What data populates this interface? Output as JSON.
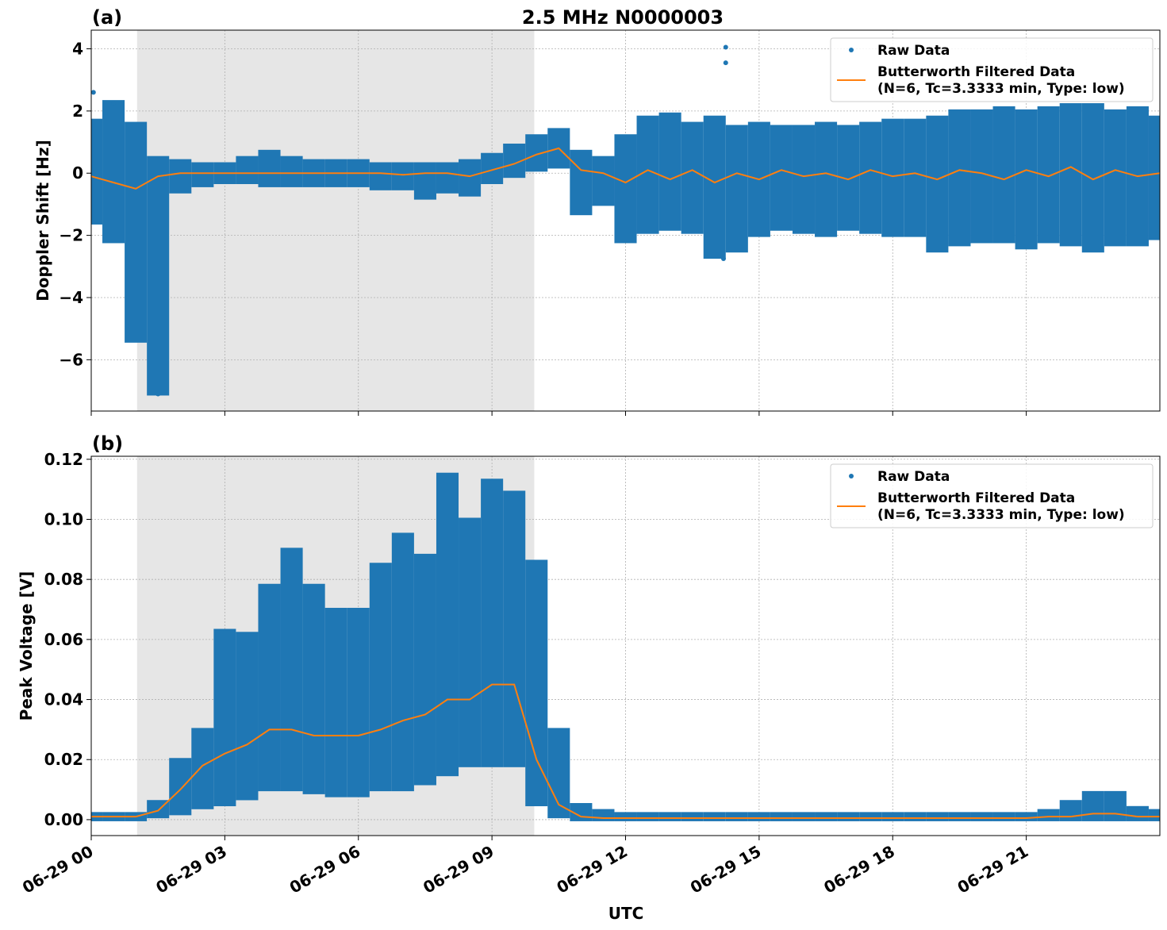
{
  "chart_data": [
    {
      "type": "scatter",
      "panel_label": "(a)",
      "title": "2.5 MHz N0000003",
      "xlabel": "",
      "ylabel": "Doppler Shift [Hz]",
      "xlim_hours": [
        0,
        24
      ],
      "ylim": [
        -7.65,
        4.6
      ],
      "yticks": [
        4,
        2,
        0,
        -2,
        -4,
        -6
      ],
      "ytick_labels": [
        "4",
        "2",
        "0",
        "−2",
        "−4",
        "−6"
      ],
      "grid": true,
      "legend_placement": "top-right",
      "shaded_interval_hours": [
        1.03,
        9.95
      ],
      "shade_color": "#e6e6e6",
      "bin_hours": [
        0,
        0.5,
        1,
        1.5,
        2,
        2.5,
        3,
        3.5,
        4,
        4.5,
        5,
        5.5,
        6,
        6.5,
        7,
        7.5,
        8,
        8.5,
        9,
        9.5,
        10,
        10.5,
        11,
        11.5,
        12,
        12.5,
        13,
        13.5,
        14,
        14.5,
        15,
        15.5,
        16,
        16.5,
        17,
        17.5,
        18,
        18.5,
        19,
        19.5,
        20,
        20.5,
        21,
        21.5,
        22,
        22.5,
        23,
        23.5,
        24
      ],
      "raw_min": [
        -1.6,
        -2.2,
        -5.4,
        -7.1,
        -0.6,
        -0.4,
        -0.3,
        -0.3,
        -0.4,
        -0.4,
        -0.4,
        -0.4,
        -0.4,
        -0.5,
        -0.5,
        -0.8,
        -0.6,
        -0.7,
        -0.3,
        -0.1,
        0.1,
        0.2,
        -1.3,
        -1.0,
        -2.2,
        -1.9,
        -1.8,
        -1.9,
        -2.7,
        -2.5,
        -2.0,
        -1.8,
        -1.9,
        -2.0,
        -1.8,
        -1.9,
        -2.0,
        -2.0,
        -2.5,
        -2.3,
        -2.2,
        -2.2,
        -2.4,
        -2.2,
        -2.3,
        -2.5,
        -2.3,
        -2.3,
        -2.1
      ],
      "raw_max": [
        1.7,
        2.3,
        1.6,
        0.5,
        0.4,
        0.3,
        0.3,
        0.5,
        0.7,
        0.5,
        0.4,
        0.4,
        0.4,
        0.3,
        0.3,
        0.3,
        0.3,
        0.4,
        0.6,
        0.9,
        1.2,
        1.4,
        0.7,
        0.5,
        1.2,
        1.8,
        1.9,
        1.6,
        1.8,
        1.5,
        1.6,
        1.5,
        1.5,
        1.6,
        1.5,
        1.6,
        1.7,
        1.7,
        1.8,
        2.0,
        2.0,
        2.1,
        2.0,
        2.1,
        2.2,
        2.2,
        2.0,
        2.1,
        1.8
      ],
      "raw_outliers": [
        [
          0.05,
          2.6
        ],
        [
          0.5,
          2.25
        ],
        [
          1.5,
          -7.1
        ],
        [
          14.25,
          4.05
        ],
        [
          14.25,
          3.55
        ],
        [
          14.2,
          -2.75
        ]
      ],
      "filtered": [
        -0.1,
        -0.3,
        -0.5,
        -0.1,
        0.0,
        0.0,
        0.0,
        0.0,
        0.0,
        0.0,
        0.0,
        0.0,
        0.0,
        0.0,
        -0.05,
        0.0,
        0.0,
        -0.1,
        0.1,
        0.3,
        0.6,
        0.8,
        0.1,
        0.0,
        -0.3,
        0.1,
        -0.2,
        0.1,
        -0.3,
        0.0,
        -0.2,
        0.1,
        -0.1,
        0.0,
        -0.2,
        0.1,
        -0.1,
        0.0,
        -0.2,
        0.1,
        0.0,
        -0.2,
        0.1,
        -0.1,
        0.2,
        -0.2,
        0.1,
        -0.1,
        0.0
      ],
      "legend": [
        "Raw Data",
        "Butterworth Filtered Data",
        "(N=6, Tc=3.3333 min, Type: low)"
      ]
    },
    {
      "type": "scatter",
      "panel_label": "(b)",
      "xlabel": "UTC",
      "ylabel": "Peak Voltage [V]",
      "xlim_hours": [
        0,
        24
      ],
      "ylim": [
        -0.0053,
        0.121
      ],
      "yticks": [
        0,
        0.02,
        0.04,
        0.06,
        0.08,
        0.1,
        0.12
      ],
      "ytick_labels": [
        "0.00",
        "0.02",
        "0.04",
        "0.06",
        "0.08",
        "0.10",
        "0.12"
      ],
      "xtick_hours": [
        0,
        3,
        6,
        9,
        12,
        15,
        18,
        21
      ],
      "xtick_labels": [
        "06-29 00",
        "06-29 03",
        "06-29 06",
        "06-29 09",
        "06-29 12",
        "06-29 15",
        "06-29 18",
        "06-29 21"
      ],
      "grid": true,
      "legend_placement": "top-right",
      "shaded_interval_hours": [
        1.03,
        9.95
      ],
      "shade_color": "#e6e6e6",
      "bin_hours": [
        0,
        0.5,
        1,
        1.5,
        2,
        2.5,
        3,
        3.5,
        4,
        4.5,
        5,
        5.5,
        6,
        6.5,
        7,
        7.5,
        8,
        8.5,
        9,
        9.5,
        10,
        10.5,
        11,
        11.5,
        12,
        12.5,
        13,
        13.5,
        14,
        14.5,
        15,
        15.5,
        16,
        16.5,
        17,
        17.5,
        18,
        18.5,
        19,
        19.5,
        20,
        20.5,
        21,
        21.5,
        22,
        22.5,
        23,
        23.5,
        24
      ],
      "raw_min": [
        0,
        0,
        0,
        0.001,
        0.002,
        0.004,
        0.005,
        0.007,
        0.01,
        0.01,
        0.009,
        0.008,
        0.008,
        0.01,
        0.01,
        0.012,
        0.015,
        0.018,
        0.018,
        0.018,
        0.005,
        0.001,
        0,
        0,
        0,
        0,
        0,
        0,
        0,
        0,
        0,
        0,
        0,
        0,
        0,
        0,
        0,
        0,
        0,
        0,
        0,
        0,
        0,
        0,
        0,
        0,
        0,
        0,
        0
      ],
      "raw_max": [
        0.002,
        0.002,
        0.002,
        0.006,
        0.02,
        0.03,
        0.063,
        0.062,
        0.078,
        0.09,
        0.078,
        0.07,
        0.07,
        0.085,
        0.095,
        0.088,
        0.115,
        0.1,
        0.113,
        0.109,
        0.086,
        0.03,
        0.005,
        0.003,
        0.002,
        0.002,
        0.002,
        0.002,
        0.002,
        0.002,
        0.002,
        0.002,
        0.002,
        0.002,
        0.002,
        0.002,
        0.002,
        0.002,
        0.002,
        0.002,
        0.002,
        0.002,
        0.002,
        0.003,
        0.006,
        0.009,
        0.009,
        0.004,
        0.003
      ],
      "raw_outliers": [],
      "filtered": [
        0.001,
        0.001,
        0.001,
        0.003,
        0.01,
        0.018,
        0.022,
        0.025,
        0.03,
        0.03,
        0.028,
        0.028,
        0.028,
        0.03,
        0.033,
        0.035,
        0.04,
        0.04,
        0.045,
        0.045,
        0.02,
        0.005,
        0.001,
        0.0005,
        0.0005,
        0.0005,
        0.0005,
        0.0005,
        0.0005,
        0.0005,
        0.0005,
        0.0005,
        0.0005,
        0.0005,
        0.0005,
        0.0005,
        0.0005,
        0.0005,
        0.0005,
        0.0005,
        0.0005,
        0.0005,
        0.0005,
        0.001,
        0.001,
        0.002,
        0.002,
        0.001,
        0.001
      ],
      "legend": [
        "Raw Data",
        "Butterworth Filtered Data",
        "(N=6, Tc=3.3333 min, Type: low)"
      ]
    }
  ],
  "colors": {
    "raw": "#1f77b4",
    "filtered": "#ff7f0e"
  }
}
